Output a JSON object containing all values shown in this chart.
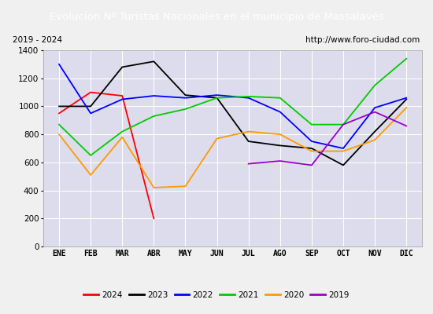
{
  "title": "Evolucion Nº Turistas Nacionales en el municipio de Massalavés",
  "subtitle_left": "2019 - 2024",
  "subtitle_right": "http://www.foro-ciudad.com",
  "title_bg_color": "#4472c4",
  "title_font_color": "#ffffff",
  "months": [
    "ENE",
    "FEB",
    "MAR",
    "ABR",
    "MAY",
    "JUN",
    "JUL",
    "AGO",
    "SEP",
    "OCT",
    "NOV",
    "DIC"
  ],
  "ylim": [
    0,
    1400
  ],
  "yticks": [
    0,
    200,
    400,
    600,
    800,
    1000,
    1200,
    1400
  ],
  "series": {
    "2024": {
      "color": "#ff0000",
      "data": [
        950,
        1100,
        1075,
        200,
        null,
        null,
        null,
        null,
        null,
        null,
        null,
        null
      ]
    },
    "2023": {
      "color": "#000000",
      "data": [
        1000,
        1000,
        1280,
        1320,
        1080,
        1060,
        750,
        720,
        700,
        580,
        820,
        1050
      ]
    },
    "2022": {
      "color": "#0000ff",
      "data": [
        1300,
        950,
        1050,
        1075,
        1060,
        1080,
        1060,
        960,
        750,
        700,
        990,
        1060
      ]
    },
    "2021": {
      "color": "#00cc00",
      "data": [
        870,
        650,
        820,
        930,
        980,
        1060,
        1070,
        1060,
        870,
        870,
        1150,
        1340
      ]
    },
    "2020": {
      "color": "#ff9900",
      "data": [
        800,
        510,
        780,
        420,
        430,
        770,
        820,
        800,
        680,
        680,
        760,
        990
      ]
    },
    "2019": {
      "color": "#9900cc",
      "data": [
        null,
        null,
        null,
        null,
        null,
        null,
        590,
        610,
        580,
        870,
        960,
        860
      ]
    }
  },
  "legend_order": [
    "2024",
    "2023",
    "2022",
    "2021",
    "2020",
    "2019"
  ],
  "outer_bg_color": "#d0d0d0",
  "plot_bg_color": "#dcdcec",
  "grid_color": "#ffffff",
  "inner_bg_color": "#f0f0f0"
}
